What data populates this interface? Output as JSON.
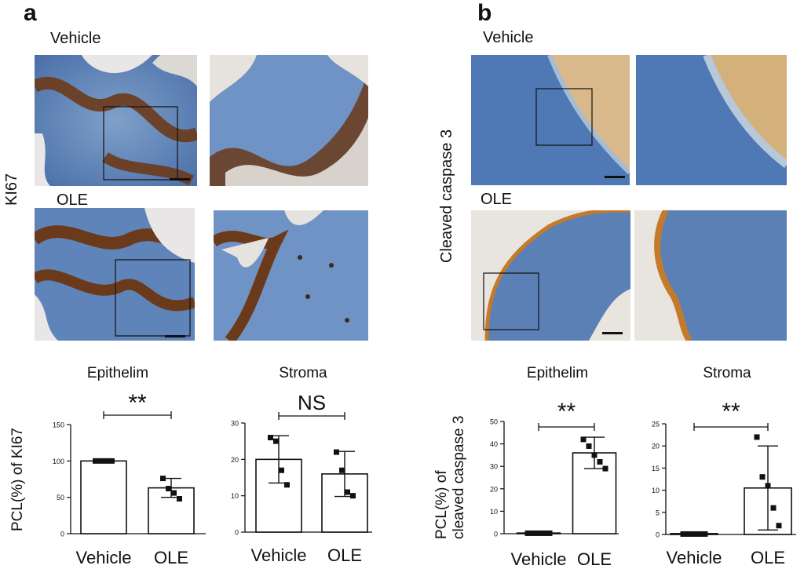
{
  "panels": [
    {
      "letter": "a",
      "image_rows": [
        "Vehicle",
        "OLE"
      ],
      "stain": "KI67",
      "charts": [
        {
          "title": "Epithelim",
          "ylabel": "PCL(%) of KI67",
          "sig": "**"
        },
        {
          "title": "Stroma",
          "sig": "NS"
        }
      ]
    },
    {
      "letter": "b",
      "image_rows": [
        "Vehicle",
        "OLE"
      ],
      "stain": "Cleaved caspase 3",
      "charts": [
        {
          "title": "Epithelim",
          "ylabel_line1": "PCL(%) of",
          "ylabel_line2": "cleaved caspase 3",
          "sig": "**"
        },
        {
          "title": "Stroma",
          "sig": "**"
        }
      ]
    }
  ],
  "colors": {
    "tissue_blue": "#4f79b4",
    "ki67_brown": "#6b3a1a",
    "caspase_orange": "#c47a2a",
    "background": "#e9e4dc"
  },
  "chart_data": [
    {
      "type": "bar",
      "title": "Epithelim",
      "ylabel": "PCL(%) of KI67",
      "categories": [
        "Vehicle",
        "OLE"
      ],
      "values": [
        100,
        63
      ],
      "error": [
        0,
        13
      ],
      "points": [
        [
          100,
          100,
          100,
          100
        ],
        [
          76,
          62,
          56,
          48
        ]
      ],
      "ylim": [
        0,
        150
      ],
      "yticks": [
        0,
        50,
        100,
        150
      ],
      "significance": "**"
    },
    {
      "type": "bar",
      "title": "Stroma",
      "categories": [
        "Vehicle",
        "OLE"
      ],
      "values": [
        20,
        16
      ],
      "error": [
        6.5,
        6.2
      ],
      "points": [
        [
          26,
          25,
          17,
          13
        ],
        [
          22,
          17,
          11,
          10
        ]
      ],
      "ylim": [
        0,
        30
      ],
      "yticks": [
        0,
        10,
        20,
        30
      ],
      "significance": "NS"
    },
    {
      "type": "bar",
      "title": "Epithelim",
      "ylabel": "PCL(%) of cleaved caspase 3",
      "categories": [
        "Vehicle",
        "OLE"
      ],
      "values": [
        0.3,
        36
      ],
      "error": [
        0,
        7
      ],
      "points": [
        [
          0.2,
          0.2,
          0.2,
          0.2,
          0.2
        ],
        [
          42,
          39,
          35,
          32,
          29
        ]
      ],
      "ylim": [
        0,
        50
      ],
      "yticks": [
        0,
        10,
        20,
        30,
        40,
        50
      ],
      "significance": "**"
    },
    {
      "type": "bar",
      "title": "Stroma",
      "categories": [
        "Vehicle",
        "OLE"
      ],
      "values": [
        0.2,
        10.5
      ],
      "error": [
        0,
        9.5
      ],
      "points": [
        [
          0.1,
          0.1,
          0.1,
          0.1,
          0.1
        ],
        [
          22,
          13,
          11,
          6,
          2
        ]
      ],
      "ylim": [
        0,
        25
      ],
      "yticks": [
        0,
        5,
        10,
        15,
        20,
        25
      ],
      "significance": "**"
    }
  ]
}
